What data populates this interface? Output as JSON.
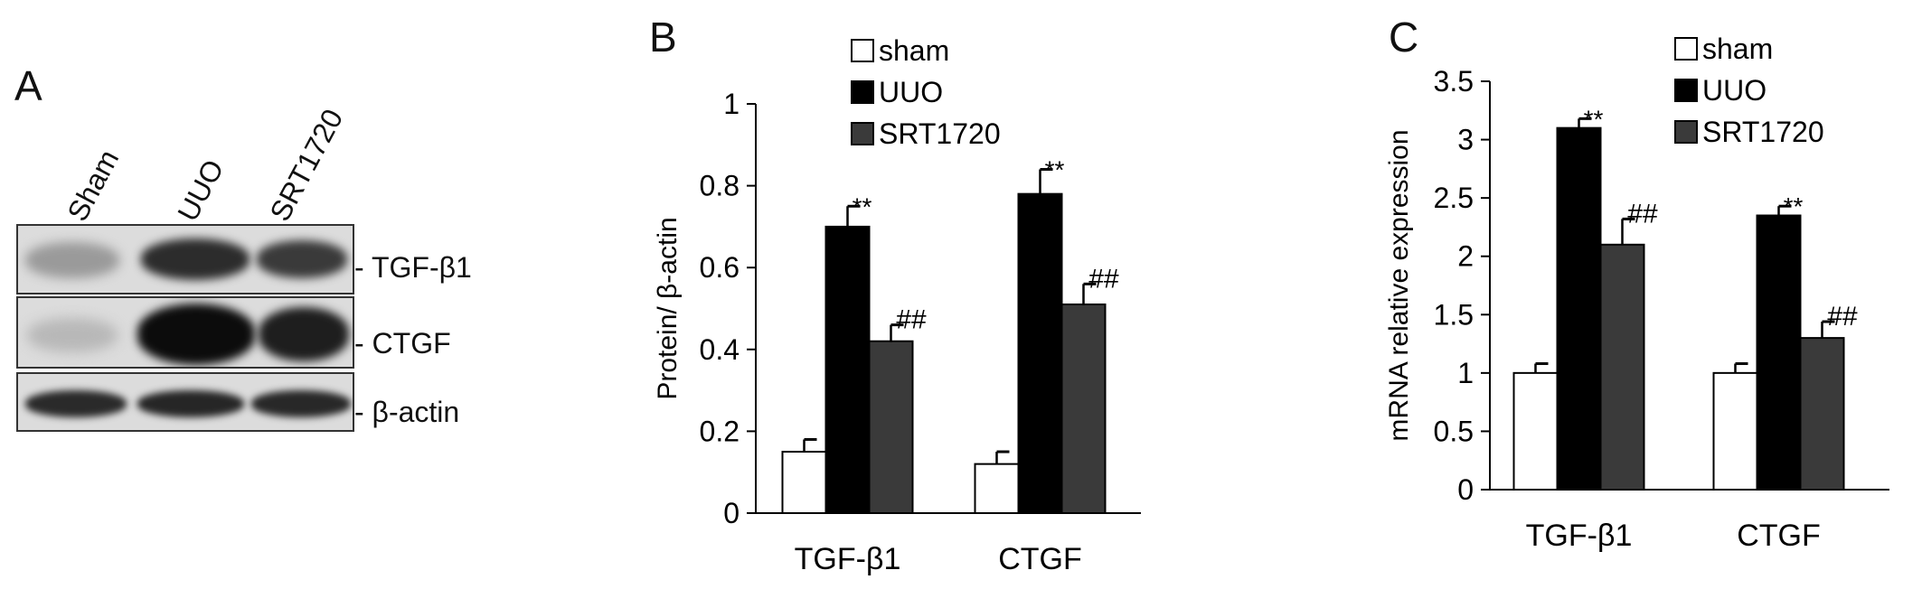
{
  "panels": {
    "a": {
      "letter": "A",
      "lanes": [
        "Sham",
        "UUO",
        "SRT1720"
      ],
      "rows": [
        "- TGF-β1",
        "- CTGF",
        "- β-actin"
      ]
    },
    "b": {
      "letter": "B"
    },
    "c": {
      "letter": "C"
    }
  },
  "chart_data": [
    {
      "type": "bar",
      "panel": "B",
      "categories": [
        "TGF-β1",
        "CTGF"
      ],
      "series": [
        {
          "name": "sham",
          "values": [
            0.15,
            0.12
          ],
          "errors": [
            0.03,
            0.03
          ],
          "color": "#ffffff",
          "annotations": [
            "",
            ""
          ]
        },
        {
          "name": "UUO",
          "values": [
            0.7,
            0.78
          ],
          "errors": [
            0.05,
            0.06
          ],
          "color": "#000000",
          "annotations": [
            "**",
            "**"
          ]
        },
        {
          "name": "SRT1720",
          "values": [
            0.42,
            0.51
          ],
          "errors": [
            0.04,
            0.05
          ],
          "color": "#3a3a3a",
          "annotations": [
            "##",
            "##"
          ]
        }
      ],
      "ylabel": "Protein/ β-actin",
      "ylim": [
        0,
        1
      ],
      "yticks": [
        "0",
        "0.2",
        "0.4",
        "0.6",
        "0.8",
        "1"
      ],
      "grid": false,
      "legend": "top-left"
    },
    {
      "type": "bar",
      "panel": "C",
      "categories": [
        "TGF-β1",
        "CTGF"
      ],
      "series": [
        {
          "name": "sham",
          "values": [
            1.0,
            1.0
          ],
          "errors": [
            0.08,
            0.08
          ],
          "color": "#ffffff",
          "annotations": [
            "",
            ""
          ]
        },
        {
          "name": "UUO",
          "values": [
            3.1,
            2.35
          ],
          "errors": [
            0.08,
            0.08
          ],
          "color": "#000000",
          "annotations": [
            "**",
            "**"
          ]
        },
        {
          "name": "SRT1720",
          "values": [
            2.1,
            1.3
          ],
          "errors": [
            0.22,
            0.14
          ],
          "color": "#3a3a3a",
          "annotations": [
            "##",
            "##"
          ]
        }
      ],
      "ylabel": "mRNA relative expression",
      "ylim": [
        0,
        3.5
      ],
      "yticks": [
        "0",
        "0.5",
        "1",
        "1.5",
        "2",
        "2.5",
        "3",
        "3.5"
      ],
      "grid": false,
      "legend": "top-right"
    }
  ]
}
